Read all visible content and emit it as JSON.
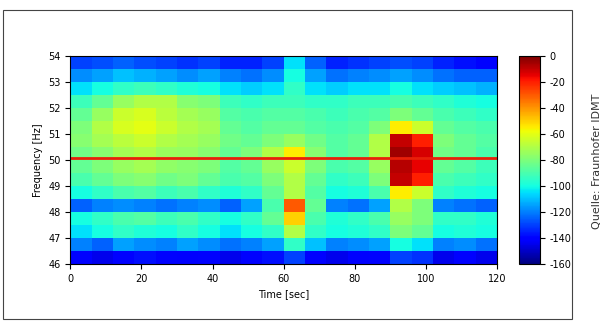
{
  "chart_data": {
    "type": "heatmap",
    "xlabel": "Time [sec]",
    "ylabel": "Frequency [Hz]",
    "annotations": [
      "Quelle: Fraunhofer IDMT"
    ],
    "xlim": [
      0,
      120
    ],
    "xticks": [
      0,
      20,
      40,
      60,
      80,
      100,
      120
    ],
    "ylim": [
      46,
      54
    ],
    "yticks": [
      46,
      47,
      48,
      49,
      50,
      51,
      52,
      53,
      54
    ],
    "x_bins": [
      0,
      6,
      12,
      18,
      24,
      30,
      36,
      42,
      48,
      54,
      60,
      66,
      72,
      78,
      84,
      90,
      96,
      102,
      108,
      114,
      120
    ],
    "y_bins": [
      46,
      46.5,
      47,
      47.5,
      48,
      48.5,
      49,
      49.5,
      50,
      50.5,
      51,
      51.5,
      52,
      52.5,
      53,
      53.5,
      54
    ],
    "cells": [
      [
        -140,
        -145,
        -140,
        -138,
        -140,
        -142,
        -140,
        -145,
        -140,
        -138,
        -130,
        -140,
        -145,
        -142,
        -140,
        -130,
        -132,
        -145,
        -140,
        -145
      ],
      [
        -120,
        -125,
        -115,
        -118,
        -120,
        -115,
        -118,
        -122,
        -120,
        -115,
        -95,
        -110,
        -120,
        -118,
        -115,
        -100,
        -105,
        -120,
        -118,
        -122
      ],
      [
        -105,
        -100,
        -95,
        -98,
        -100,
        -95,
        -100,
        -105,
        -100,
        -95,
        -70,
        -95,
        -100,
        -98,
        -95,
        -80,
        -85,
        -100,
        -98,
        -100
      ],
      [
        -100,
        -95,
        -90,
        -88,
        -92,
        -90,
        -95,
        -100,
        -95,
        -85,
        -50,
        -90,
        -98,
        -95,
        -90,
        -75,
        -80,
        -95,
        -95,
        -98
      ],
      [
        -125,
        -120,
        -118,
        -120,
        -122,
        -120,
        -118,
        -125,
        -115,
        -90,
        -30,
        -85,
        -120,
        -122,
        -115,
        -70,
        -80,
        -120,
        -122,
        -125
      ],
      [
        -100,
        -95,
        -90,
        -88,
        -92,
        -90,
        -95,
        -98,
        -95,
        -85,
        -70,
        -88,
        -100,
        -98,
        -90,
        -55,
        -65,
        -95,
        -98,
        -100
      ],
      [
        -90,
        -85,
        -80,
        -78,
        -82,
        -80,
        -85,
        -90,
        -88,
        -80,
        -70,
        -85,
        -95,
        -92,
        -80,
        -10,
        -20,
        -90,
        -92,
        -95
      ],
      [
        -85,
        -80,
        -75,
        -72,
        -76,
        -78,
        -80,
        -88,
        -85,
        -75,
        -65,
        -80,
        -90,
        -88,
        -75,
        -8,
        -15,
        -85,
        -88,
        -92
      ],
      [
        -82,
        -78,
        -72,
        -70,
        -74,
        -75,
        -78,
        -85,
        -80,
        -70,
        -55,
        -78,
        -88,
        -85,
        -70,
        -5,
        -12,
        -82,
        -85,
        -90
      ],
      [
        -78,
        -72,
        -68,
        -65,
        -70,
        -72,
        -75,
        -82,
        -85,
        -80,
        -75,
        -82,
        -88,
        -85,
        -70,
        -10,
        -20,
        -80,
        -85,
        -88
      ],
      [
        -80,
        -70,
        -62,
        -60,
        -65,
        -70,
        -72,
        -85,
        -88,
        -85,
        -85,
        -88,
        -90,
        -88,
        -80,
        -55,
        -65,
        -85,
        -88,
        -90
      ],
      [
        -85,
        -75,
        -65,
        -62,
        -68,
        -72,
        -75,
        -88,
        -90,
        -88,
        -88,
        -90,
        -92,
        -90,
        -88,
        -80,
        -85,
        -90,
        -92,
        -95
      ],
      [
        -92,
        -85,
        -75,
        -70,
        -70,
        -78,
        -80,
        -92,
        -95,
        -92,
        -92,
        -95,
        -95,
        -92,
        -92,
        -90,
        -92,
        -95,
        -98,
        -100
      ],
      [
        -105,
        -100,
        -95,
        -92,
        -95,
        -98,
        -100,
        -105,
        -108,
        -105,
        -95,
        -105,
        -108,
        -105,
        -105,
        -100,
        -105,
        -108,
        -110,
        -112
      ],
      [
        -118,
        -115,
        -110,
        -112,
        -115,
        -118,
        -115,
        -120,
        -122,
        -118,
        -100,
        -115,
        -122,
        -120,
        -118,
        -115,
        -118,
        -122,
        -125,
        -125
      ],
      [
        -130,
        -128,
        -125,
        -128,
        -130,
        -132,
        -130,
        -135,
        -135,
        -130,
        -105,
        -125,
        -135,
        -132,
        -130,
        -128,
        -130,
        -135,
        -138,
        -140
      ]
    ],
    "colorbar_range": [
      -160,
      0
    ],
    "colorbar_ticks": [
      0,
      -20,
      -40,
      -60,
      -80,
      -100,
      -120,
      -140,
      -160
    ],
    "series": [
      {
        "type": "line",
        "color": "#e8200a",
        "x": [
          0,
          120
        ],
        "values": [
          50.1,
          50.1
        ]
      }
    ]
  }
}
